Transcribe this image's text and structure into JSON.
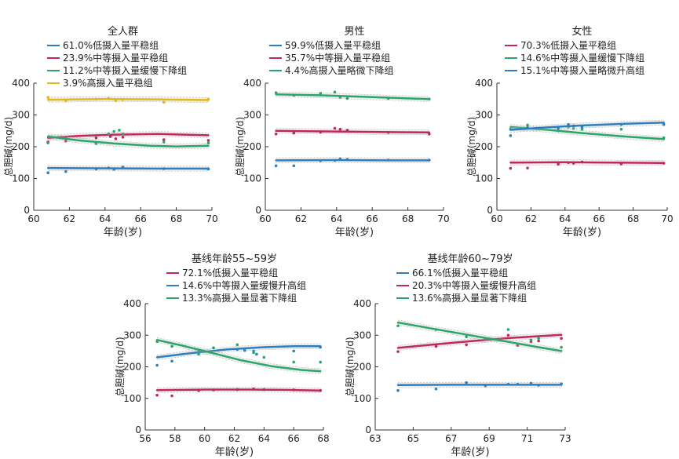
{
  "figure_type": "grouped trend panels",
  "chart_data": [
    {
      "type": "line",
      "title": "全人群",
      "xlabel": "年龄(岁)",
      "ylabel": "总胆碱(mg/d)",
      "xlim": [
        60,
        70
      ],
      "ylim": [
        0,
        400
      ],
      "xticks": [
        60,
        62,
        64,
        66,
        68,
        70
      ],
      "yticks": [
        0,
        100,
        200,
        300,
        400
      ],
      "series": [
        {
          "name": "61.0%低摄入量平稳组",
          "color": "#2e7fc2",
          "x": [
            60.8,
            67,
            69.8
          ],
          "y": [
            133,
            131,
            131
          ],
          "points": [
            [
              60.8,
              118
            ],
            [
              61.8,
              122
            ],
            [
              63.5,
              130
            ],
            [
              64.2,
              133
            ],
            [
              64.5,
              129
            ],
            [
              65,
              136
            ],
            [
              67.3,
              131
            ],
            [
              69.8,
              130
            ]
          ]
        },
        {
          "name": "23.9%中等摄入量平稳组",
          "color": "#c1275d",
          "x": [
            60.8,
            62.5,
            64.5,
            67,
            69.8
          ],
          "y": [
            228,
            234,
            238,
            240,
            236
          ],
          "points": [
            [
              60.8,
              215
            ],
            [
              61.8,
              218
            ],
            [
              63.5,
              228
            ],
            [
              64.3,
              232
            ],
            [
              64.6,
              225
            ],
            [
              65,
              230
            ],
            [
              67.3,
              222
            ],
            [
              69.8,
              220
            ]
          ]
        },
        {
          "name": "11.2%中等摄入量缓慢下降组",
          "color": "#2aa66a",
          "x": [
            60.8,
            62.5,
            64.5,
            66.5,
            68,
            69.8
          ],
          "y": [
            232,
            220,
            210,
            203,
            201,
            203
          ],
          "points": [
            [
              60.8,
              212
            ],
            [
              61.8,
              225
            ],
            [
              63.5,
              210
            ],
            [
              64.2,
              240
            ],
            [
              64.5,
              248
            ],
            [
              64.8,
              252
            ],
            [
              65,
              240
            ],
            [
              67.3,
              215
            ],
            [
              69.8,
              212
            ]
          ]
        },
        {
          "name": "3.9%高摄入量平稳组",
          "color": "#e5b81a",
          "x": [
            60.8,
            64,
            67,
            69.8
          ],
          "y": [
            348,
            350,
            349,
            347
          ],
          "points": [
            [
              60.8,
              355
            ],
            [
              61.8,
              345
            ],
            [
              63.5,
              350
            ],
            [
              64.2,
              352
            ],
            [
              64.6,
              345
            ],
            [
              65,
              348
            ],
            [
              67.3,
              340
            ],
            [
              69.8,
              350
            ]
          ]
        }
      ]
    },
    {
      "type": "line",
      "title": "男性",
      "xlabel": "年龄(岁)",
      "ylabel": "总胆碱(mg/d)",
      "xlim": [
        60,
        70
      ],
      "ylim": [
        0,
        400
      ],
      "xticks": [
        60,
        62,
        64,
        66,
        68,
        70
      ],
      "yticks": [
        0,
        100,
        200,
        300,
        400
      ],
      "series": [
        {
          "name": "59.9%低摄入量平稳组",
          "color": "#2e7fc2",
          "x": [
            60.6,
            64,
            67,
            69.2
          ],
          "y": [
            157,
            158,
            157,
            157
          ],
          "points": [
            [
              60.6,
              140
            ],
            [
              61.6,
              140
            ],
            [
              63.1,
              156
            ],
            [
              63.9,
              157
            ],
            [
              64.2,
              162
            ],
            [
              64.6,
              160
            ],
            [
              66.9,
              158
            ],
            [
              69.2,
              158
            ]
          ]
        },
        {
          "name": "35.7%中等摄入量平稳组",
          "color": "#c1275d",
          "x": [
            60.6,
            64,
            67,
            69.2
          ],
          "y": [
            250,
            248,
            246,
            245
          ],
          "points": [
            [
              60.6,
              240
            ],
            [
              61.6,
              243
            ],
            [
              63.1,
              246
            ],
            [
              63.9,
              258
            ],
            [
              64.2,
              255
            ],
            [
              64.6,
              252
            ],
            [
              66.9,
              245
            ],
            [
              69.2,
              240
            ]
          ]
        },
        {
          "name": "4.4%高摄入量略微下降组",
          "color": "#2aa66a",
          "x": [
            60.6,
            63,
            66,
            69.2
          ],
          "y": [
            365,
            362,
            356,
            350
          ],
          "points": [
            [
              60.6,
              370
            ],
            [
              61.6,
              362
            ],
            [
              63.1,
              368
            ],
            [
              63.9,
              372
            ],
            [
              64.2,
              356
            ],
            [
              64.6,
              352
            ],
            [
              66.9,
              352
            ],
            [
              69.2,
              350
            ]
          ]
        }
      ]
    },
    {
      "type": "line",
      "title": "女性",
      "xlabel": "年龄(岁)",
      "ylabel": "总胆碱(mg/d)",
      "xlim": [
        60,
        70
      ],
      "ylim": [
        0,
        400
      ],
      "xticks": [
        60,
        62,
        64,
        66,
        68,
        70
      ],
      "yticks": [
        0,
        100,
        200,
        300,
        400
      ],
      "series": [
        {
          "name": "70.3%低摄入量平稳组",
          "color": "#c1275d",
          "x": [
            60.8,
            64,
            67,
            69.8
          ],
          "y": [
            150,
            151,
            150,
            149
          ],
          "points": [
            [
              60.8,
              132
            ],
            [
              61.8,
              133
            ],
            [
              63.6,
              145
            ],
            [
              64.2,
              150
            ],
            [
              64.5,
              148
            ],
            [
              65,
              152
            ],
            [
              67.3,
              146
            ],
            [
              69.8,
              148
            ]
          ]
        },
        {
          "name": "14.6%中等摄入量缓慢下降组",
          "color": "#2aa66a",
          "x": [
            60.8,
            63,
            65,
            67.5,
            69.8
          ],
          "y": [
            262,
            253,
            243,
            232,
            224
          ],
          "points": [
            [
              60.8,
              255
            ],
            [
              61.8,
              268
            ],
            [
              63.6,
              250
            ],
            [
              64.2,
              262
            ],
            [
              64.5,
              258
            ],
            [
              65,
              255
            ],
            [
              67.3,
              255
            ],
            [
              69.8,
              228
            ]
          ]
        },
        {
          "name": "15.1%中等摄入量略微升高组",
          "color": "#2e7fc2",
          "x": [
            60.8,
            63,
            65,
            67.5,
            69.8
          ],
          "y": [
            253,
            261,
            267,
            272,
            276
          ],
          "points": [
            [
              60.8,
              235
            ],
            [
              61.8,
              260
            ],
            [
              63.6,
              258
            ],
            [
              64.2,
              270
            ],
            [
              64.5,
              266
            ],
            [
              65,
              262
            ],
            [
              67.3,
              270
            ],
            [
              69.8,
              270
            ]
          ]
        }
      ]
    },
    {
      "type": "line",
      "title": "基线年龄55~59岁",
      "xlabel": "年龄(岁)",
      "ylabel": "总胆碱(mg/d)",
      "xlim": [
        56,
        68
      ],
      "ylim": [
        0,
        400
      ],
      "xticks": [
        56,
        58,
        60,
        62,
        64,
        66,
        68
      ],
      "yticks": [
        0,
        100,
        200,
        300,
        400
      ],
      "series": [
        {
          "name": "72.1%低摄入量平稳组",
          "color": "#c1275d",
          "x": [
            56.8,
            60,
            63,
            65.5,
            67.8
          ],
          "y": [
            126,
            128,
            128,
            127,
            125
          ],
          "points": [
            [
              56.8,
              110
            ],
            [
              57.8,
              108
            ],
            [
              59.6,
              125
            ],
            [
              60.6,
              127
            ],
            [
              62.2,
              128
            ],
            [
              63.3,
              130
            ],
            [
              64,
              128
            ],
            [
              66,
              127
            ],
            [
              67.8,
              125
            ]
          ]
        },
        {
          "name": "14.6%中等摄入量缓慢升高组",
          "color": "#2e7fc2",
          "x": [
            56.8,
            59,
            61.5,
            64,
            66,
            67.8
          ],
          "y": [
            230,
            243,
            255,
            262,
            265,
            265
          ],
          "points": [
            [
              56.8,
              205
            ],
            [
              57.8,
              218
            ],
            [
              59.6,
              250
            ],
            [
              60.6,
              260
            ],
            [
              62.2,
              255
            ],
            [
              62.7,
              252
            ],
            [
              63.3,
              250
            ],
            [
              63.5,
              240
            ],
            [
              66,
              250
            ],
            [
              67.8,
              262
            ]
          ]
        },
        {
          "name": "13.3%高摄入量显著下降组",
          "color": "#2aa66a",
          "x": [
            56.8,
            58.5,
            60.5,
            62.5,
            64.5,
            66.5,
            67.8
          ],
          "y": [
            285,
            267,
            244,
            220,
            202,
            190,
            186
          ],
          "points": [
            [
              56.8,
              280
            ],
            [
              57.8,
              265
            ],
            [
              59.6,
              240
            ],
            [
              60.6,
              260
            ],
            [
              62.2,
              270
            ],
            [
              63.3,
              245
            ],
            [
              64,
              230
            ],
            [
              66,
              215
            ],
            [
              67.8,
              215
            ]
          ]
        }
      ]
    },
    {
      "type": "line",
      "title": "基线年龄60~79岁",
      "xlabel": "年龄(岁)",
      "ylabel": "总胆碱(mg/d)",
      "xlim": [
        63,
        73
      ],
      "ylim": [
        0,
        400
      ],
      "xticks": [
        63,
        65,
        67,
        69,
        71,
        73
      ],
      "yticks": [
        0,
        100,
        200,
        300,
        400
      ],
      "series": [
        {
          "name": "66.1%低摄入量平稳组",
          "color": "#2e7fc2",
          "x": [
            64.2,
            67,
            70,
            72.8
          ],
          "y": [
            142,
            143,
            143,
            143
          ],
          "points": [
            [
              64.2,
              125
            ],
            [
              66.2,
              130
            ],
            [
              67.8,
              150
            ],
            [
              68.8,
              140
            ],
            [
              70,
              145
            ],
            [
              70.5,
              145
            ],
            [
              71.2,
              148
            ],
            [
              71.6,
              142
            ],
            [
              72.8,
              146
            ]
          ]
        },
        {
          "name": "20.3%中等摄入量缓慢升高组",
          "color": "#c1275d",
          "x": [
            64.2,
            66,
            68,
            70,
            72.8
          ],
          "y": [
            260,
            270,
            281,
            291,
            301
          ],
          "points": [
            [
              64.2,
              248
            ],
            [
              66.2,
              265
            ],
            [
              67.8,
              270
            ],
            [
              68.8,
              290
            ],
            [
              70,
              300
            ],
            [
              70.5,
              268
            ],
            [
              71.2,
              280
            ],
            [
              71.6,
              282
            ],
            [
              72.8,
              290
            ]
          ]
        },
        {
          "name": "13.6%高摄入量显著下降组",
          "color": "#2aa66a",
          "x": [
            64.2,
            66,
            68,
            70,
            71.5,
            72.8
          ],
          "y": [
            340,
            321,
            300,
            279,
            263,
            250
          ],
          "points": [
            [
              64.2,
              330
            ],
            [
              66.2,
              318
            ],
            [
              67.8,
              295
            ],
            [
              68.8,
              290
            ],
            [
              70,
              318
            ],
            [
              70.5,
              272
            ],
            [
              71.2,
              285
            ],
            [
              71.6,
              290
            ],
            [
              72.8,
              262
            ]
          ]
        }
      ]
    }
  ]
}
